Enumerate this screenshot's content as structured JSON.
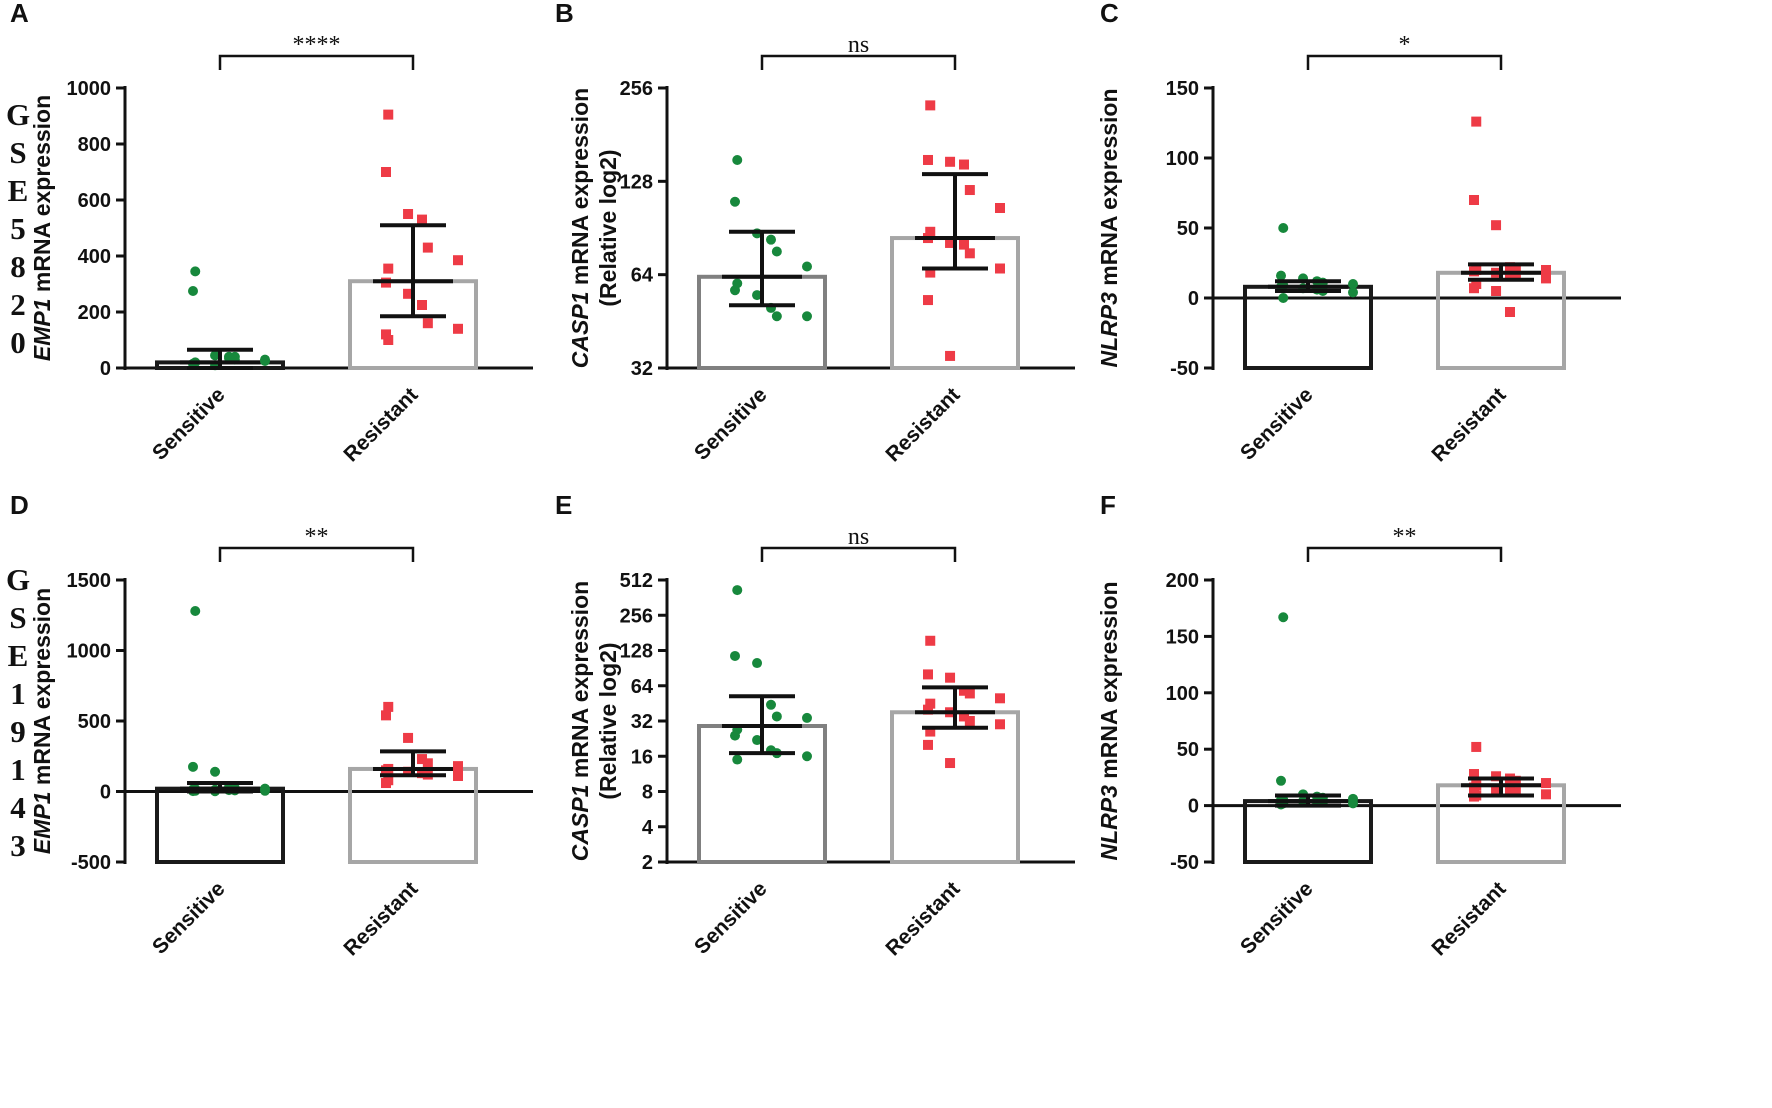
{
  "figure": {
    "side_labels": [
      {
        "row": 0,
        "chars": [
          "G",
          "S",
          "E",
          "5",
          "8",
          "2",
          "0"
        ]
      },
      {
        "row": 1,
        "chars": [
          "G",
          "S",
          "E",
          "1",
          "9",
          "1",
          "4",
          "3"
        ]
      }
    ]
  },
  "chart_data": [
    {
      "panel": "A",
      "type": "bar",
      "row": 0,
      "col": 0,
      "gene": "EMP1",
      "ylabel_rest": " mRNA expression",
      "ylabel_line2": "",
      "scale": "linear",
      "ylim": [
        0,
        1000
      ],
      "yticks": [
        0,
        200,
        400,
        600,
        800,
        1000
      ],
      "ytick_labels": [
        "0",
        "200",
        "400",
        "600",
        "800",
        "1000"
      ],
      "zero_line": false,
      "categories": [
        "Sensitive",
        "Resistant"
      ],
      "bar_colors": [
        "#1a1a1a",
        "#a6a6a6"
      ],
      "means": [
        20,
        310
      ],
      "error_low": [
        0,
        185
      ],
      "error_high": [
        65,
        510
      ],
      "points": [
        [
          345,
          275,
          45,
          40,
          30,
          25,
          20,
          15,
          10,
          35,
          40,
          30
        ],
        [
          905,
          700,
          550,
          530,
          430,
          385,
          355,
          305,
          265,
          225,
          160,
          140,
          100,
          120
        ]
      ],
      "significance": "****"
    },
    {
      "panel": "B",
      "type": "bar",
      "row": 0,
      "col": 1,
      "gene": "CASP1",
      "ylabel_rest": " mRNA expression",
      "ylabel_line2": "(Relative log2)",
      "scale": "log2",
      "ylim": [
        32,
        256
      ],
      "yticks": [
        32,
        64,
        128,
        256
      ],
      "ytick_labels": [
        "32",
        "64",
        "128",
        "256"
      ],
      "zero_line": false,
      "categories": [
        "Sensitive",
        "Resistant"
      ],
      "bar_colors": [
        "#808080",
        "#a6a6a6"
      ],
      "means": [
        63,
        84
      ],
      "error_low": [
        51,
        67
      ],
      "error_high": [
        88,
        135
      ],
      "points": [
        [
          150,
          110,
          87,
          83,
          76,
          68,
          60,
          57,
          55,
          50,
          47,
          47
        ],
        [
          225,
          150,
          148,
          145,
          120,
          105,
          88,
          84,
          81,
          80,
          75,
          67,
          65,
          53,
          35
        ]
      ],
      "significance": "ns"
    },
    {
      "panel": "C",
      "type": "bar",
      "row": 0,
      "col": 2,
      "gene": "NLRP3",
      "ylabel_rest": " mRNA expression",
      "ylabel_line2": "",
      "scale": "linear",
      "ylim": [
        -50,
        150
      ],
      "yticks": [
        -50,
        0,
        50,
        100,
        150
      ],
      "ytick_labels": [
        "-50",
        "0",
        "50",
        "100",
        "150"
      ],
      "zero_line": true,
      "categories": [
        "Sensitive",
        "Resistant"
      ],
      "bar_colors": [
        "#1a1a1a",
        "#a6a6a6"
      ],
      "means": [
        8,
        18
      ],
      "error_low": [
        5,
        13
      ],
      "error_high": [
        12,
        24
      ],
      "points": [
        [
          50,
          16,
          14,
          12,
          11,
          10,
          9,
          8,
          7,
          6,
          5,
          4,
          0
        ],
        [
          126,
          70,
          52,
          22,
          21,
          20,
          20,
          19,
          18,
          17,
          16,
          14,
          10,
          7,
          5,
          -10
        ]
      ],
      "significance": "*"
    },
    {
      "panel": "D",
      "type": "bar",
      "row": 1,
      "col": 0,
      "gene": "EMP1",
      "ylabel_rest": " mRNA expression",
      "ylabel_line2": "",
      "scale": "linear",
      "ylim": [
        -500,
        1500
      ],
      "yticks": [
        -500,
        0,
        500,
        1000,
        1500
      ],
      "ytick_labels": [
        "-500",
        "0",
        "500",
        "1000",
        "1500"
      ],
      "zero_line": true,
      "categories": [
        "Sensitive",
        "Resistant"
      ],
      "bar_colors": [
        "#1a1a1a",
        "#a6a6a6"
      ],
      "means": [
        20,
        160
      ],
      "error_low": [
        0,
        115
      ],
      "error_high": [
        60,
        285
      ],
      "points": [
        [
          1280,
          175,
          140,
          30,
          25,
          20,
          18,
          15,
          12,
          10,
          8,
          5,
          5,
          3,
          2
        ],
        [
          600,
          540,
          380,
          230,
          200,
          180,
          160,
          150,
          140,
          130,
          120,
          110,
          80,
          60
        ]
      ],
      "significance": "**"
    },
    {
      "panel": "E",
      "type": "bar",
      "row": 1,
      "col": 1,
      "gene": "CASP1",
      "ylabel_rest": " mRNA expression",
      "ylabel_line2": "(Relative log2)",
      "scale": "log2",
      "ylim": [
        2,
        512
      ],
      "yticks": [
        2,
        4,
        8,
        16,
        32,
        64,
        128,
        256,
        512
      ],
      "ytick_labels": [
        "2",
        "4",
        "8",
        "16",
        "32",
        "64",
        "128",
        "256",
        "512"
      ],
      "zero_line": false,
      "categories": [
        "Sensitive",
        "Resistant"
      ],
      "bar_colors": [
        "#808080",
        "#a6a6a6"
      ],
      "means": [
        29,
        38
      ],
      "error_low": [
        17,
        28
      ],
      "error_high": [
        52,
        62
      ],
      "points": [
        [
          420,
          115,
          100,
          44,
          35,
          34,
          27,
          24,
          22,
          18,
          17,
          16,
          15
        ],
        [
          155,
          80,
          75,
          58,
          55,
          50,
          45,
          40,
          38,
          35,
          32,
          30,
          26,
          20,
          14
        ]
      ],
      "significance": "ns"
    },
    {
      "panel": "F",
      "type": "bar",
      "row": 1,
      "col": 2,
      "gene": "NLRP3",
      "ylabel_rest": " mRNA expression",
      "ylabel_line2": "",
      "scale": "linear",
      "ylim": [
        -50,
        200
      ],
      "yticks": [
        -50,
        0,
        50,
        100,
        150,
        200
      ],
      "ytick_labels": [
        "-50",
        "0",
        "50",
        "100",
        "150",
        "200"
      ],
      "zero_line": true,
      "categories": [
        "Sensitive",
        "Resistant"
      ],
      "bar_colors": [
        "#1a1a1a",
        "#a6a6a6"
      ],
      "means": [
        4,
        18
      ],
      "error_low": [
        0,
        9
      ],
      "error_high": [
        9,
        24
      ],
      "points": [
        [
          167,
          22,
          10,
          8,
          7,
          6,
          5,
          5,
          4,
          3,
          3,
          2,
          2,
          1
        ],
        [
          52,
          28,
          26,
          24,
          22,
          20,
          18,
          16,
          14,
          13,
          12,
          10,
          9,
          8
        ]
      ],
      "significance": "**"
    }
  ]
}
